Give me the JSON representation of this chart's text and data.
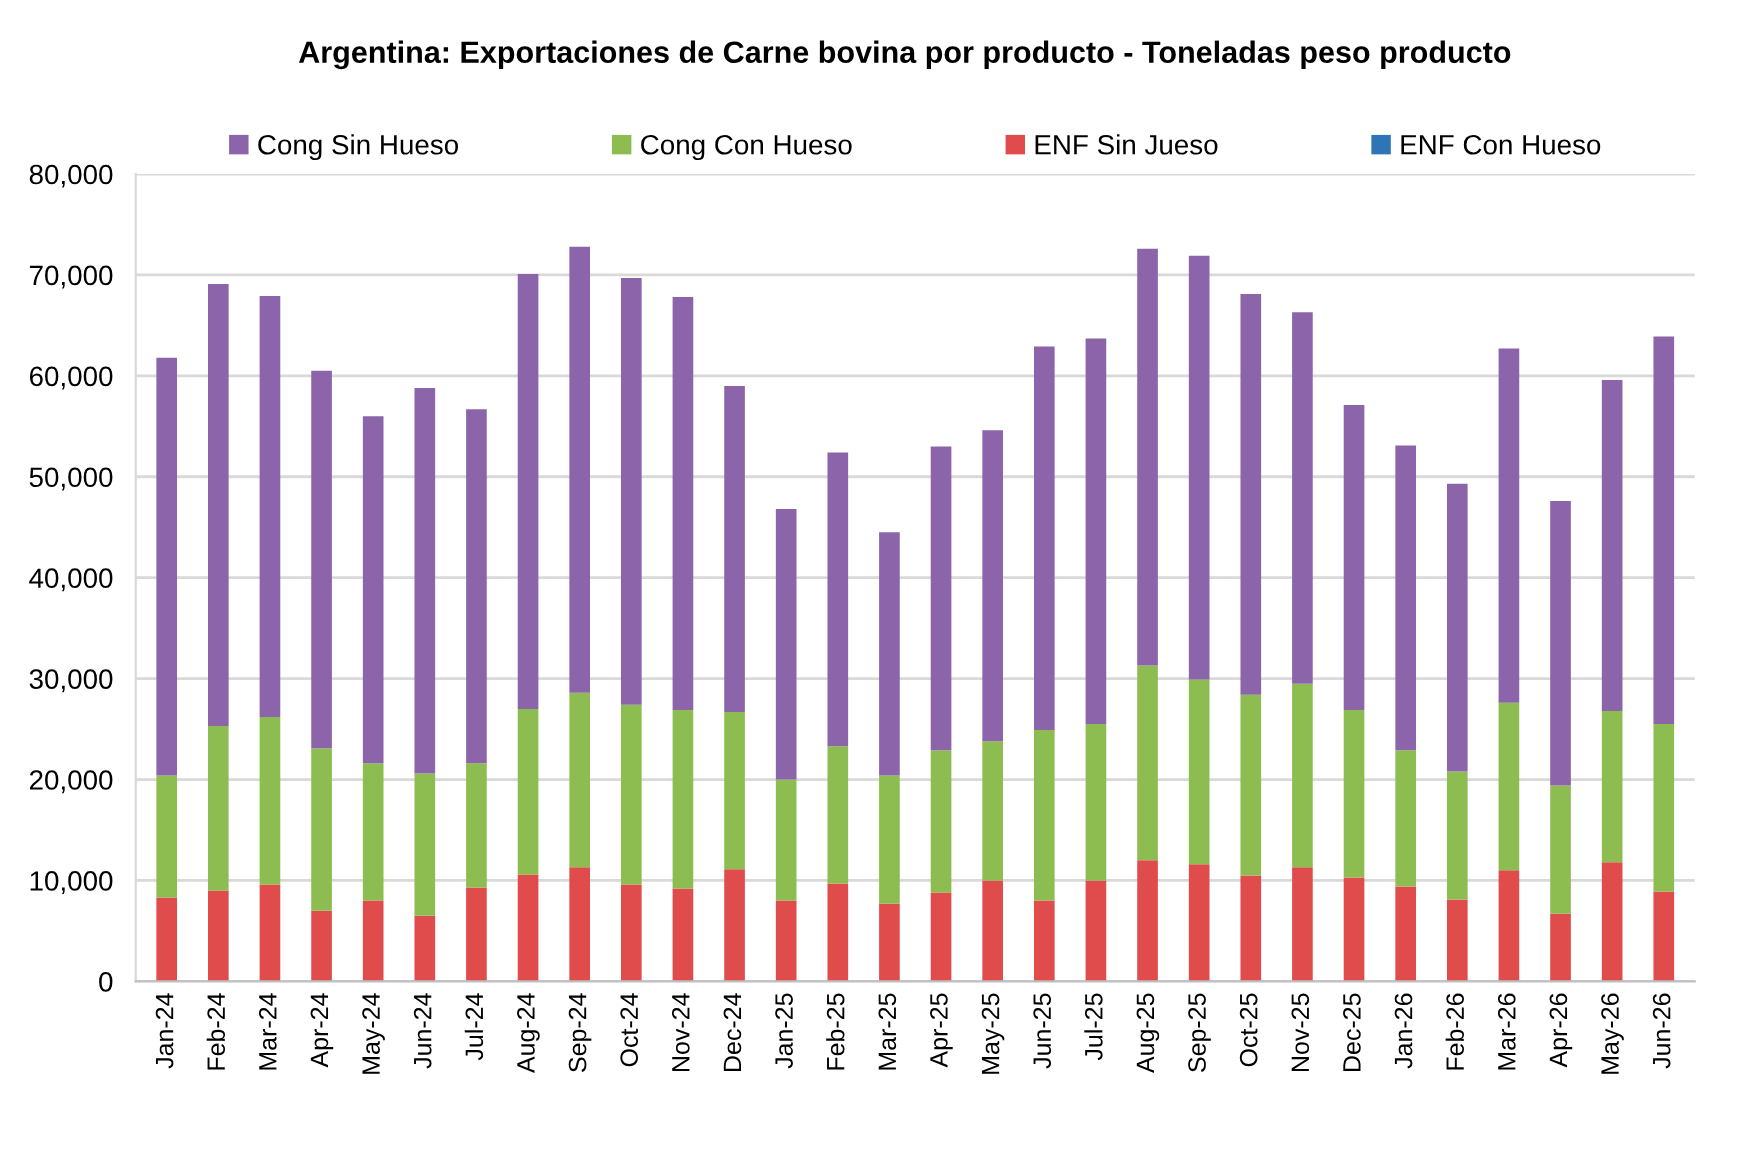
{
  "chart_data": {
    "type": "bar",
    "title": "Argentina: Exportaciones de Carne bovina por producto - Toneladas peso producto",
    "categories": [
      "Jan-24",
      "Feb-24",
      "Mar-24",
      "Apr-24",
      "May-24",
      "Jun-24",
      "Jul-24",
      "Aug-24",
      "Sep-24",
      "Oct-24",
      "Nov-24",
      "Dec-24",
      "Jan-25",
      "Feb-25",
      "Mar-25",
      "Apr-25",
      "May-25",
      "Jun-25",
      "Jul-25",
      "Aug-25",
      "Sep-25",
      "Oct-25",
      "Nov-25",
      "Dec-25",
      "Jan-26",
      "Feb-26",
      "Mar-26",
      "Apr-26",
      "May-26",
      "Jun-26"
    ],
    "stacked": true,
    "series": [
      {
        "name": "ENF Con Hueso",
        "color": "#2e75b6",
        "values": [
          null,
          null,
          null,
          null,
          null,
          null,
          null,
          null,
          null,
          null,
          null,
          null,
          null,
          null,
          null,
          null,
          null,
          null,
          null,
          null,
          null,
          null,
          null,
          null,
          null,
          null,
          null,
          null,
          null,
          null
        ]
      },
      {
        "name": "ENF Sin Jueso",
        "color": "#e04b4b",
        "values": [
          8300,
          9000,
          9600,
          7000,
          8000,
          6500,
          9300,
          10600,
          11300,
          9600,
          9200,
          11100,
          8000,
          9700,
          7700,
          8800,
          10000,
          8000,
          10000,
          12000,
          11600,
          10500,
          11300,
          10300,
          9400,
          8100,
          11000,
          6700,
          11800,
          8900
        ]
      },
      {
        "name": "Cong Con Hueso",
        "color": "#8dbd50",
        "values": [
          12100,
          16300,
          16600,
          16100,
          13600,
          14100,
          12300,
          16400,
          17300,
          17800,
          17700,
          15600,
          12000,
          13600,
          12700,
          14100,
          13800,
          16900,
          15500,
          19300,
          18300,
          17900,
          18200,
          16600,
          13500,
          12700,
          16600,
          12700,
          15000,
          16600
        ]
      },
      {
        "name": "Cong Sin Hueso",
        "color": "#8c64aa",
        "values": [
          41400,
          43800,
          41700,
          37400,
          34400,
          38200,
          35100,
          43100,
          44200,
          42300,
          40900,
          32300,
          26800,
          29100,
          24100,
          30100,
          30800,
          38000,
          38200,
          41300,
          42000,
          39700,
          36800,
          30200,
          30200,
          28500,
          35100,
          28200,
          32800,
          38400
        ]
      }
    ],
    "ylim": [
      0,
      80000
    ],
    "yticks": [
      0,
      {
        "value": 10000,
        "label": "10,000"
      },
      {
        "value": 20000,
        "label": "20,000"
      },
      {
        "value": 30000,
        "label": "30,000"
      },
      {
        "value": 40000,
        "label": "40,000"
      },
      {
        "value": 50000,
        "label": "50,000"
      },
      {
        "value": 60000,
        "label": "60,000"
      },
      {
        "value": 70000,
        "label": "70,000"
      },
      {
        "value": 80000,
        "label": "80,000"
      }
    ],
    "grid": "y",
    "legend": "top"
  }
}
